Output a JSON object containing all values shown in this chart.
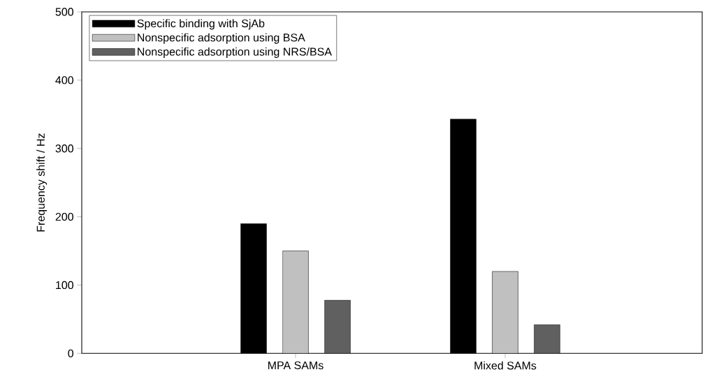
{
  "chart_data": {
    "type": "bar",
    "ylabel": "Frequency shift / Hz",
    "categories": [
      "MPA SAMs",
      "Mixed SAMs"
    ],
    "series": [
      {
        "name": "Specific binding with SjAb",
        "color": "#000000",
        "values": [
          190,
          343
        ]
      },
      {
        "name": "Nonspecific adsorption using BSA",
        "color": "#c0c0c0",
        "values": [
          150,
          120
        ]
      },
      {
        "name": "Nonspecific adsorption using NRS/BSA",
        "color": "#606060",
        "values": [
          78,
          42
        ]
      }
    ],
    "ylim": [
      0,
      500
    ],
    "yticks": [
      0,
      100,
      200,
      300,
      400,
      500
    ],
    "grid": false,
    "legend": "top left"
  }
}
